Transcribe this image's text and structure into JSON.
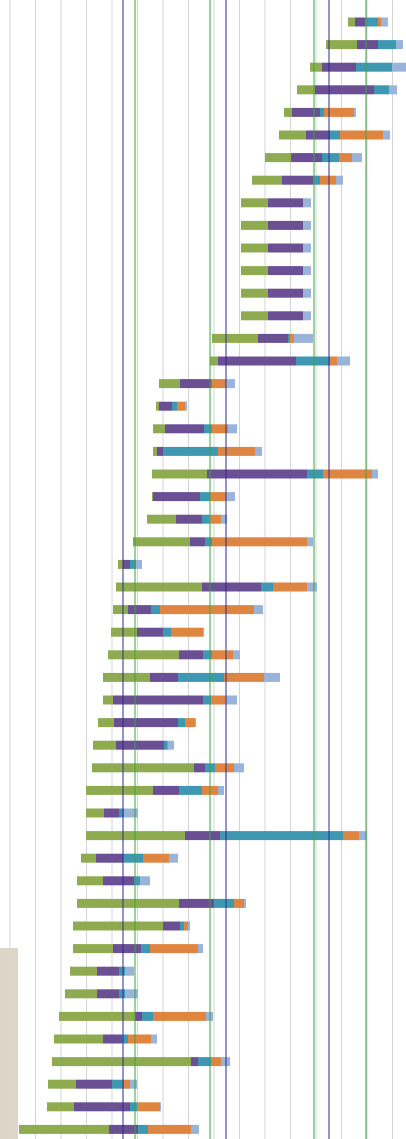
{
  "chart_data": {
    "type": "stacked-barh",
    "categories": [
      null,
      null,
      null,
      null,
      null,
      null,
      null,
      null,
      null,
      null,
      null,
      null,
      null,
      null,
      null,
      null,
      null,
      null,
      null,
      null,
      null,
      null,
      null,
      null,
      null,
      null,
      null,
      null,
      null,
      null,
      null,
      null,
      null,
      null,
      null,
      null,
      null,
      null,
      null,
      null,
      null,
      null,
      null,
      null,
      null,
      null,
      null,
      null,
      null,
      null
    ],
    "xlim": [
      0,
      406
    ],
    "xgrid": [
      10,
      35.5,
      61,
      86.5,
      112,
      137.5,
      163,
      188.5,
      214,
      239.5,
      265,
      290.5,
      316,
      341.5,
      367,
      392.5
    ],
    "grid_color": "#d4d4d4",
    "ref_lines": [
      {
        "value": 123,
        "color": "#2e2a8c"
      },
      {
        "value": 226,
        "color": "#2e2a8c"
      },
      {
        "value": 329,
        "color": "#2e2a8c"
      },
      {
        "value": 135,
        "color": "#3ba53b"
      },
      {
        "value": 210,
        "color": "#3ba53b"
      },
      {
        "value": 314,
        "color": "#3ba53b"
      },
      {
        "value": 366,
        "color": "#3ba53b"
      }
    ],
    "series": [
      {
        "color": "none",
        "values": [
          348,
          326,
          310,
          297,
          284,
          279,
          265,
          252,
          241,
          241,
          241,
          241,
          241,
          241,
          212,
          210,
          159,
          156,
          153,
          153,
          152,
          152,
          147,
          133,
          118,
          116,
          113,
          111,
          108,
          103,
          103,
          98,
          93,
          92,
          86,
          86,
          86,
          81,
          77,
          77,
          73,
          73,
          70,
          65,
          59,
          54,
          52,
          48,
          47,
          19
        ]
      },
      {
        "color": "#8fab50",
        "values": [
          7,
          31,
          12,
          18,
          8,
          27,
          26,
          30,
          27,
          27,
          27,
          27,
          27,
          27,
          46,
          8,
          21,
          3,
          12,
          4,
          55,
          1,
          29,
          57,
          5,
          86,
          15,
          26,
          71,
          47,
          10,
          16,
          23,
          102,
          67,
          18,
          99,
          15,
          26,
          102,
          90,
          40,
          27,
          32,
          76,
          49,
          139,
          28,
          27,
          90
        ]
      },
      {
        "color": "#6a4f95",
        "values": [
          10,
          21,
          34,
          59,
          28,
          24,
          31,
          31,
          35,
          35,
          35,
          35,
          35,
          35,
          30,
          78,
          31,
          13,
          39,
          6,
          100,
          47,
          26,
          15,
          7,
          59,
          23,
          26,
          24,
          28,
          90,
          64,
          48,
          11,
          26,
          15,
          35,
          27,
          31,
          35,
          17,
          28,
          22,
          22,
          7,
          19,
          7,
          36,
          56,
          29
        ]
      },
      {
        "color": "#3f98b1",
        "values": [
          13,
          18,
          36,
          15,
          4,
          10,
          17,
          7,
          0,
          0,
          0,
          0,
          0,
          0,
          2,
          34,
          1,
          5,
          8,
          55,
          16,
          10,
          7,
          7,
          6,
          12,
          9,
          8,
          9,
          46,
          8,
          7,
          3,
          10,
          23,
          5,
          123,
          20,
          6,
          20,
          4,
          9,
          6,
          6,
          11,
          6,
          13,
          12,
          7,
          10
        ]
      },
      {
        "color": "#de8641",
        "values": [
          3,
          0,
          0,
          0,
          30,
          43,
          13,
          16,
          0,
          0,
          0,
          0,
          0,
          0,
          4,
          7,
          14,
          8,
          16,
          37,
          49,
          16,
          12,
          95,
          0,
          34,
          94,
          32,
          21,
          40,
          14,
          10,
          1,
          19,
          16,
          0,
          16,
          26,
          0,
          10,
          4,
          48,
          0,
          0,
          53,
          23,
          10,
          6,
          23,
          43
        ]
      },
      {
        "color": "#99b3da",
        "values": [
          7,
          7,
          14,
          8,
          2,
          7,
          10,
          7,
          8,
          8,
          8,
          8,
          8,
          8,
          19,
          13,
          9,
          2,
          9,
          7,
          6,
          9,
          6,
          6,
          6,
          10,
          9,
          1,
          7,
          16,
          12,
          1,
          6,
          10,
          6,
          14,
          8,
          9,
          10,
          2,
          2,
          5,
          9,
          13,
          7,
          6,
          9,
          7,
          1,
          8
        ]
      }
    ]
  }
}
